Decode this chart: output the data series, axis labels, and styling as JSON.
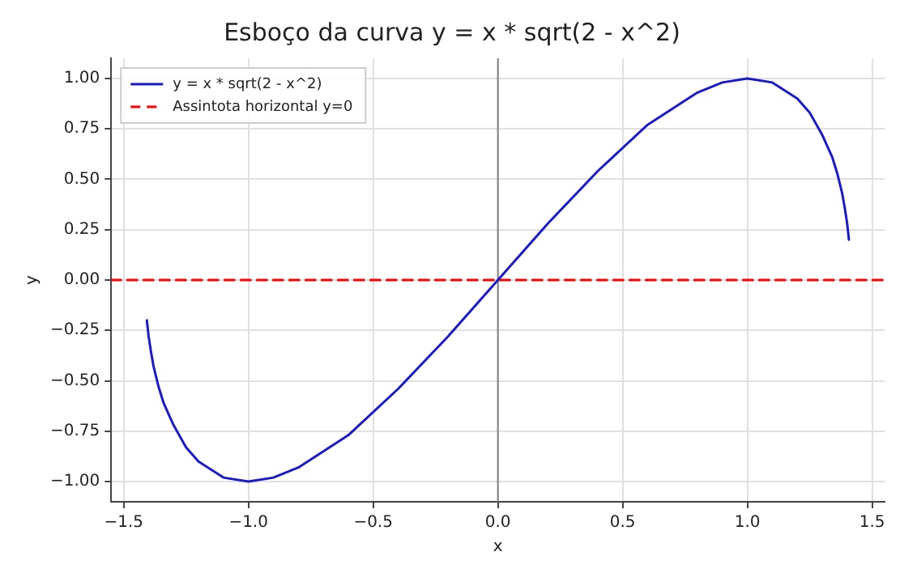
{
  "chart_data": {
    "type": "line",
    "title": "Esboço da curva y = x * sqrt(2 - x^2)",
    "xlabel": "x",
    "ylabel": "y",
    "series": [
      {
        "name": "y = x * sqrt(2 - x^2)",
        "color": "#1a1acc",
        "x": [
          -1.407,
          -1.4,
          -1.39,
          -1.38,
          -1.36,
          -1.34,
          -1.3,
          -1.25,
          -1.2,
          -1.1,
          -1.0,
          -0.9,
          -0.8,
          -0.6,
          -0.4,
          -0.2,
          0,
          0.2,
          0.4,
          0.6,
          0.8,
          0.9,
          1.0,
          1.1,
          1.2,
          1.25,
          1.3,
          1.34,
          1.36,
          1.38,
          1.39,
          1.4,
          1.407
        ],
        "values": [
          -0.2,
          -0.28,
          -0.36,
          -0.43,
          -0.53,
          -0.61,
          -0.72,
          -0.83,
          -0.9,
          -0.98,
          -1.0,
          -0.98,
          -0.93,
          -0.77,
          -0.54,
          -0.28,
          0,
          0.28,
          0.54,
          0.77,
          0.93,
          0.98,
          1.0,
          0.98,
          0.9,
          0.83,
          0.72,
          0.61,
          0.53,
          0.43,
          0.36,
          0.28,
          0.2
        ]
      },
      {
        "name": "Assintota horizontal y=0",
        "color": "#ff0000",
        "line_style": "dashed",
        "x": [
          -1.55,
          1.55
        ],
        "values": [
          0,
          0
        ]
      }
    ],
    "ref_lines": [
      {
        "axis": "x",
        "value": 0,
        "color": "#808080"
      }
    ],
    "xlim": [
      -1.55,
      1.55
    ],
    "ylim": [
      -1.1,
      1.1
    ],
    "xticks": [
      {
        "value": -1.5,
        "label": "−1.5"
      },
      {
        "value": -1,
        "label": "−1.0"
      },
      {
        "value": -0.5,
        "label": "−0.5"
      },
      {
        "value": 0,
        "label": "0.0"
      },
      {
        "value": 0.5,
        "label": "0.5"
      },
      {
        "value": 1,
        "label": "1.0"
      },
      {
        "value": 1.5,
        "label": "1.5"
      }
    ],
    "yticks": [
      {
        "value": -1,
        "label": "−1.00"
      },
      {
        "value": -0.75,
        "label": "−0.75"
      },
      {
        "value": -0.5,
        "label": "−0.50"
      },
      {
        "value": -0.25,
        "label": "−0.25"
      },
      {
        "value": 0,
        "label": "0.00"
      },
      {
        "value": 0.25,
        "label": "0.25"
      },
      {
        "value": 0.5,
        "label": "0.50"
      },
      {
        "value": 0.75,
        "label": "0.75"
      },
      {
        "value": 1,
        "label": "1.00"
      }
    ],
    "grid": true,
    "legend": "top left",
    "marker": "none"
  }
}
